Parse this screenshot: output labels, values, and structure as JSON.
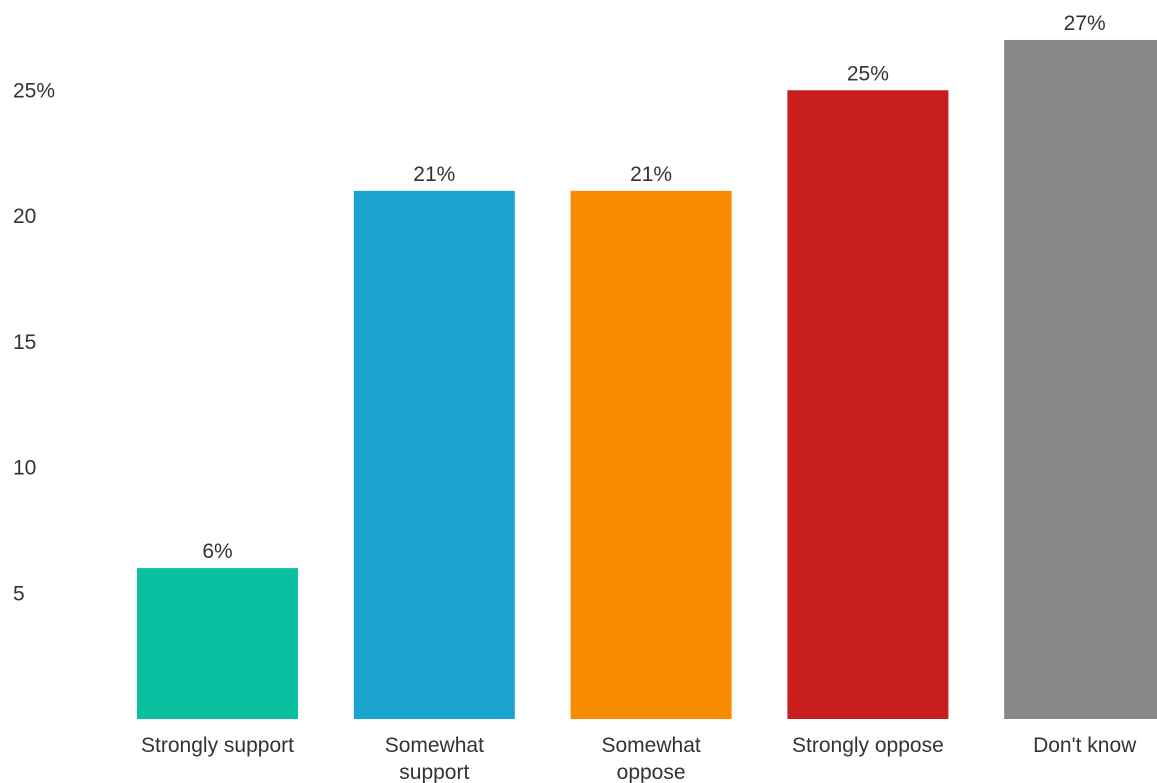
{
  "chart_data": {
    "type": "bar",
    "categories": [
      [
        "Strongly support"
      ],
      [
        "Somewhat",
        "support"
      ],
      [
        "Somewhat",
        "oppose"
      ],
      [
        "Strongly oppose"
      ],
      [
        "Don't know"
      ]
    ],
    "values": [
      6,
      21,
      21,
      25,
      27
    ],
    "data_labels": [
      "6%",
      "21%",
      "21%",
      "25%",
      "27%"
    ],
    "colors": [
      "#0bbfa1",
      "#1aa3cf",
      "#f88c00",
      "#c81e1e",
      "#878787"
    ],
    "yticks": [
      {
        "value": 5,
        "label": "5"
      },
      {
        "value": 10,
        "label": "10"
      },
      {
        "value": 15,
        "label": "15"
      },
      {
        "value": 20,
        "label": "20"
      },
      {
        "value": 25,
        "label": "25%"
      }
    ],
    "ylim": [
      0,
      27
    ],
    "grid": false,
    "legend": "none"
  }
}
